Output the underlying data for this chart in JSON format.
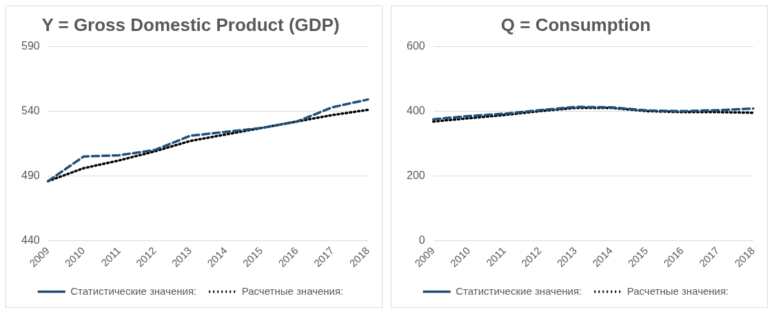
{
  "chart_data": [
    {
      "type": "line",
      "title": "Y = Gross Domestic Product (GDP)",
      "categories": [
        "2009",
        "2010",
        "2011",
        "2012",
        "2013",
        "2014",
        "2015",
        "2016",
        "2017",
        "2018"
      ],
      "series": [
        {
          "name": "Статистические значения:",
          "color": "#1f4e79",
          "line_style": "dashed",
          "values": [
            486,
            505,
            506,
            510,
            521,
            524,
            527,
            532,
            543,
            549
          ]
        },
        {
          "name": "Расчетные значения:",
          "color": "#000000",
          "line_style": "dotted",
          "values": [
            486,
            496,
            502,
            509,
            517,
            522,
            527,
            532,
            537,
            541
          ]
        }
      ],
      "ylim": [
        440,
        590
      ],
      "yticks": [
        440,
        490,
        540,
        590
      ],
      "grid": "y",
      "legend": "bottom",
      "marker": "none"
    },
    {
      "type": "line",
      "title": "Q = Consumption",
      "categories": [
        "2009",
        "2010",
        "2011",
        "2012",
        "2013",
        "2014",
        "2015",
        "2016",
        "2017",
        "2018"
      ],
      "series": [
        {
          "name": "Статистические значения:",
          "color": "#1f4e79",
          "line_style": "dashed",
          "values": [
            375,
            385,
            392,
            403,
            413,
            412,
            402,
            400,
            403,
            408
          ]
        },
        {
          "name": "Расчетные значения:",
          "color": "#000000",
          "line_style": "dotted",
          "values": [
            368,
            378,
            388,
            400,
            410,
            410,
            400,
            397,
            397,
            395
          ]
        }
      ],
      "ylim": [
        0,
        600
      ],
      "yticks": [
        0,
        200,
        400,
        600
      ],
      "grid": "y",
      "legend": "bottom",
      "marker": "none"
    }
  ]
}
